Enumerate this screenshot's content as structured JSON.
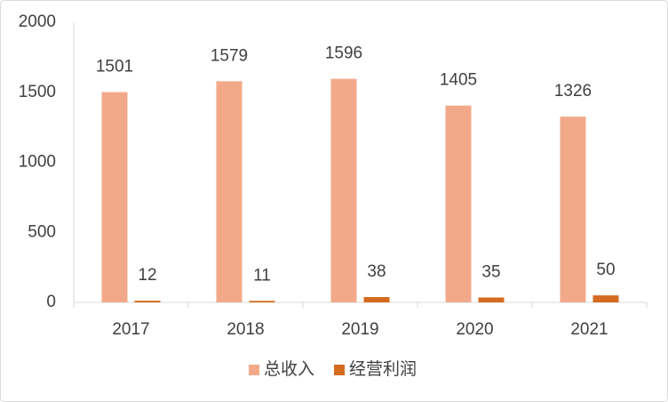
{
  "chart_data": {
    "type": "bar",
    "categories": [
      "2017",
      "2018",
      "2019",
      "2020",
      "2021"
    ],
    "series": [
      {
        "name": "总收入",
        "color": "#f2a98a",
        "values": [
          1501,
          1579,
          1596,
          1405,
          1326
        ]
      },
      {
        "name": "经营利润",
        "color": "#d46b1f",
        "values": [
          12,
          11,
          38,
          35,
          50
        ]
      }
    ],
    "ylim": [
      0,
      2000
    ],
    "yticks": [
      0,
      500,
      1000,
      1500,
      2000
    ],
    "grid": false,
    "legend": "bottom"
  }
}
